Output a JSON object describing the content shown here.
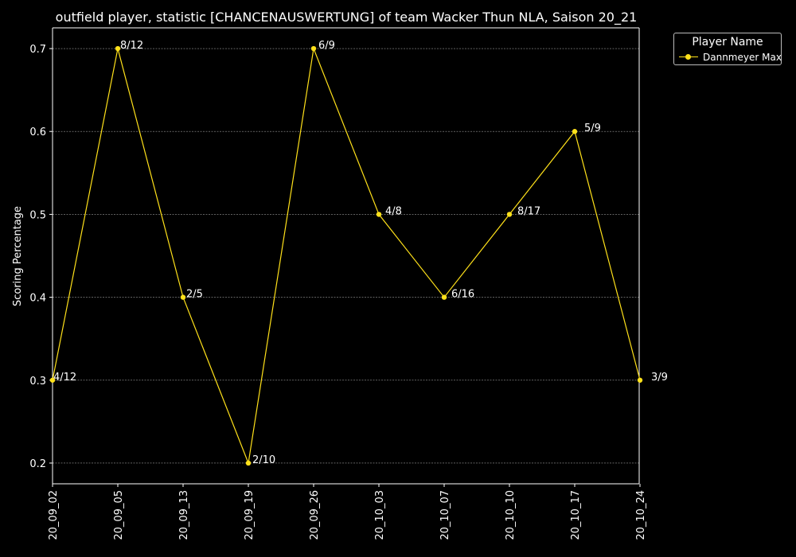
{
  "chart_data": {
    "type": "line",
    "title": "outfield player, statistic [CHANCENAUSWERTUNG] of team Wacker Thun NLA, Saison 20_21",
    "xlabel": "",
    "ylabel": "Scoring Percentage",
    "categories": [
      "20_09_02",
      "20_09_05",
      "20_09_13",
      "20_09_19",
      "20_09_26",
      "20_10_03",
      "20_10_07",
      "20_10_10",
      "20_10_17",
      "20_10_24"
    ],
    "y_ticks": [
      "0.2",
      "0.3",
      "0.4",
      "0.5",
      "0.6",
      "0.7"
    ],
    "ylim": [
      0.175,
      0.725
    ],
    "grid": "horizontal dashed",
    "legend": {
      "title": "Player Name",
      "placement": "upper-right outside"
    },
    "series": [
      {
        "name": "Dannmeyer Max",
        "color": "#ffe11a",
        "values": [
          0.3,
          0.7,
          0.4,
          0.2,
          0.7,
          0.5,
          0.4,
          0.5,
          0.6,
          0.3
        ],
        "point_labels": [
          "4/12",
          "8/12",
          "2/5",
          "2/10",
          "6/9",
          "4/8",
          "6/16",
          "8/17",
          "5/9",
          "3/9"
        ]
      }
    ]
  }
}
